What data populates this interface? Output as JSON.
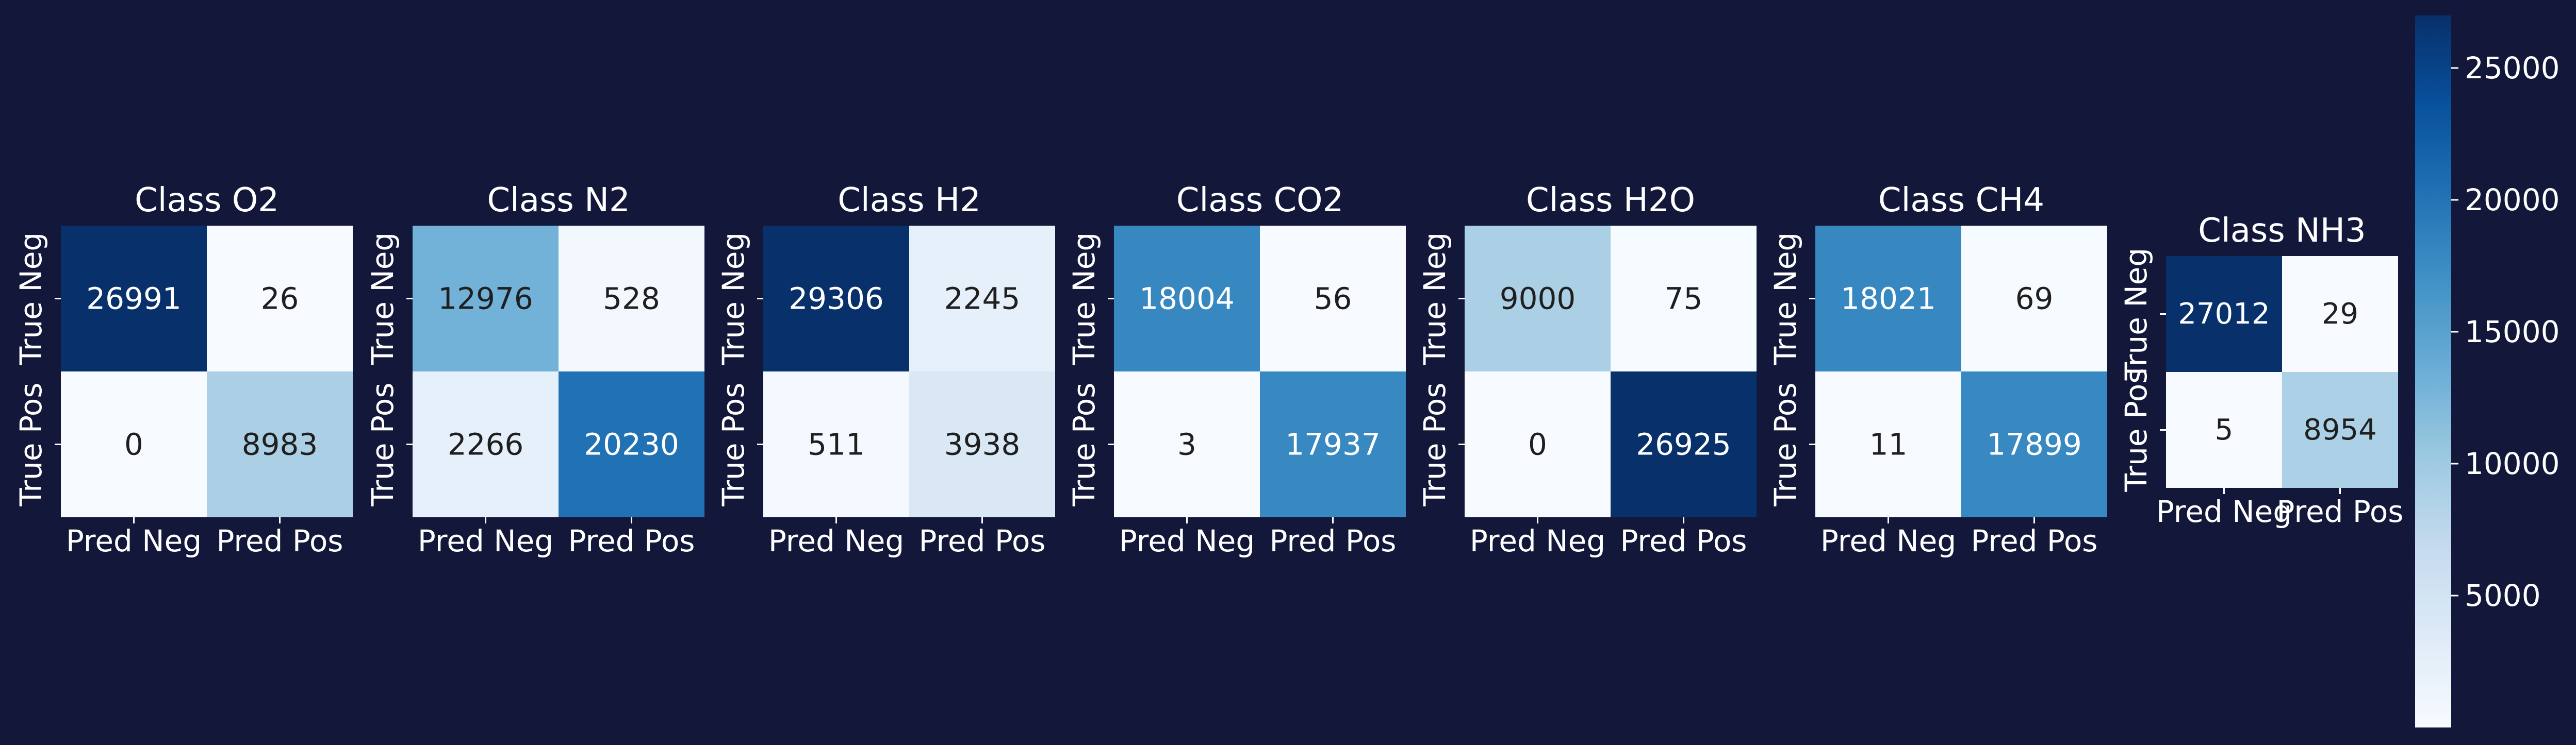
{
  "chart_data": {
    "type": "heatmap",
    "background": "#13183a",
    "text_color": "#ffffff",
    "colormap": "Blues",
    "colormap_stops": [
      "#f7fbff",
      "#deebf7",
      "#c6dbef",
      "#9ecae1",
      "#6baed6",
      "#4292c6",
      "#2171b5",
      "#08519c",
      "#08306b"
    ],
    "value_range": [
      0,
      26991
    ],
    "x_tick_labels": [
      "Pred Neg",
      "Pred Pos"
    ],
    "y_tick_labels": [
      "True Neg",
      "True Pos"
    ],
    "panels": [
      {
        "title": "Class O2",
        "matrix": [
          [
            26991,
            26
          ],
          [
            0,
            8983
          ]
        ]
      },
      {
        "title": "Class N2",
        "matrix": [
          [
            12976,
            528
          ],
          [
            2266,
            20230
          ]
        ]
      },
      {
        "title": "Class H2",
        "matrix": [
          [
            29306,
            2245
          ],
          [
            511,
            3938
          ]
        ]
      },
      {
        "title": "Class CO2",
        "matrix": [
          [
            18004,
            56
          ],
          [
            3,
            17937
          ]
        ]
      },
      {
        "title": "Class H2O",
        "matrix": [
          [
            9000,
            75
          ],
          [
            0,
            26925
          ]
        ]
      },
      {
        "title": "Class CH4",
        "matrix": [
          [
            18021,
            69
          ],
          [
            11,
            17899
          ]
        ]
      },
      {
        "title": "Class NH3",
        "matrix": [
          [
            27012,
            29
          ],
          [
            5,
            8954
          ]
        ]
      }
    ],
    "colorbar": {
      "ticks": [
        5000,
        10000,
        15000,
        20000,
        25000
      ],
      "tick_labels": [
        "5000",
        "10000",
        "15000",
        "20000",
        "25000"
      ]
    }
  }
}
